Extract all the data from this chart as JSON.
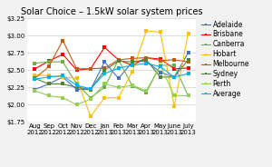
{
  "title": "Solar Choice – 1.5kW solar system prices",
  "months": [
    "Aug\n2012",
    "Sep\n2012",
    "Oct\n2012",
    "Nov\n2012",
    "Dec\n2012",
    "Jan\n2013",
    "Feb\n2013",
    "Mar\n2013",
    "Apr\n2013",
    "May\n2013",
    "June\n2013",
    "July\n2013"
  ],
  "series": {
    "Adelaide": {
      "color": "#4472c4",
      "marker": "s",
      "values": [
        2.22,
        2.3,
        2.4,
        2.22,
        2.22,
        2.62,
        2.38,
        2.62,
        2.63,
        2.47,
        2.4,
        2.75
      ]
    },
    "Brisbane": {
      "color": "#ff0000",
      "marker": "s",
      "values": [
        2.52,
        2.63,
        2.73,
        2.5,
        2.52,
        2.83,
        2.65,
        2.57,
        2.68,
        2.66,
        2.52,
        2.53
      ]
    },
    "Canberra": {
      "color": "#70ad47",
      "marker": "s",
      "values": [
        2.6,
        2.62,
        2.62,
        2.3,
        2.1,
        2.25,
        2.65,
        2.27,
        2.18,
        2.57,
        2.57,
        2.13
      ]
    },
    "Hobart": {
      "color": "#ffc000",
      "marker": "s",
      "values": [
        2.43,
        2.42,
        2.4,
        2.38,
        1.83,
        2.1,
        2.1,
        2.48,
        3.07,
        3.05,
        1.98,
        3.03
      ]
    },
    "Melbourne": {
      "color": "#c55a11",
      "marker": "s",
      "values": [
        2.38,
        2.55,
        2.93,
        2.52,
        2.52,
        2.53,
        2.65,
        2.67,
        2.68,
        2.64,
        2.65,
        2.62
      ]
    },
    "Sydney": {
      "color": "#548235",
      "marker": "s",
      "values": [
        2.38,
        2.3,
        2.3,
        2.25,
        2.22,
        2.5,
        2.63,
        2.62,
        2.65,
        2.4,
        2.4,
        2.65
      ]
    },
    "Perth": {
      "color": "#92d050",
      "marker": "s",
      "values": [
        2.2,
        2.13,
        2.1,
        2.0,
        2.08,
        2.3,
        2.25,
        2.28,
        2.2,
        2.57,
        2.13,
        2.13
      ]
    },
    "Average": {
      "color": "#00b0f0",
      "marker": "s",
      "values": [
        2.37,
        2.4,
        2.42,
        2.28,
        2.23,
        2.45,
        2.53,
        2.57,
        2.6,
        2.55,
        2.4,
        2.45
      ]
    }
  },
  "ylim": [
    1.75,
    3.25
  ],
  "yticks": [
    1.75,
    2.0,
    2.25,
    2.5,
    2.75,
    3.0,
    3.25
  ],
  "background_color": "#f2f2f2",
  "plot_bg": "#ffffff",
  "title_fontsize": 7,
  "tick_fontsize": 5,
  "legend_fontsize": 5.5,
  "line_width": 0.8,
  "marker_size": 2.2
}
